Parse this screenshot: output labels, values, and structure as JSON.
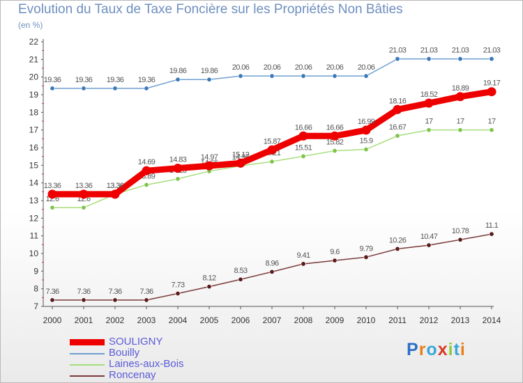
{
  "header": {
    "title": "Evolution du Taux de Taxe Foncière sur les Propriétés Non Bâties",
    "subtitle": "(en %)"
  },
  "logo": {
    "text": "Proxiti",
    "letter_colors": [
      "#2a6fc9",
      "#e8801a",
      "#3aa7d8",
      "#d83a2a",
      "#8bc93a",
      "#3aa7d8",
      "#e8801a"
    ]
  },
  "chart_data": {
    "type": "line",
    "title": "Evolution du Taux de Taxe Foncière sur les Propriétés Non Bâties",
    "subtitle": "(en %)",
    "xlabel": "",
    "ylabel": "",
    "x": [
      "2000",
      "2001",
      "2002",
      "2003",
      "2004",
      "2005",
      "2006",
      "2007",
      "2008",
      "2009",
      "2010",
      "2011",
      "2012",
      "2013",
      "2014"
    ],
    "yticks": [
      "7",
      "8",
      "9",
      "10",
      "11",
      "12",
      "13",
      "14",
      "15",
      "16",
      "17",
      "18",
      "19",
      "20",
      "21",
      "22"
    ],
    "ylim": [
      7,
      22
    ],
    "grid": false,
    "legend_position": "bottom-left",
    "series": [
      {
        "name": "SOULIGNY",
        "color": "#ee0000",
        "emphasis": true,
        "values": [
          13.36,
          13.36,
          13.36,
          14.69,
          14.83,
          14.97,
          15.12,
          15.87,
          16.66,
          16.66,
          16.99,
          18.16,
          18.52,
          18.89,
          19.17
        ],
        "labels": [
          "13.36",
          "13.36",
          "13.36",
          "14.69",
          "14.83",
          "14.97",
          "15.12",
          "15.87",
          "16.66",
          "16.66",
          "16.99",
          "18.16",
          "18.52",
          "18.89",
          "19.17"
        ]
      },
      {
        "name": "Bouilly",
        "color": "#6e9fd0",
        "marker": "#3a78b8",
        "values": [
          19.36,
          19.36,
          19.36,
          19.36,
          19.86,
          19.86,
          20.06,
          20.06,
          20.06,
          20.06,
          20.06,
          21.03,
          21.03,
          21.03,
          21.03
        ],
        "labels": [
          "19.36",
          "19.36",
          "19.36",
          "19.36",
          "19.86",
          "19.86",
          "20.06",
          "20.06",
          "20.06",
          "20.06",
          "20.06",
          "21.03",
          "21.03",
          "21.03",
          "21.03"
        ]
      },
      {
        "name": "Laines-aux-Bois",
        "color": "#a6de7a",
        "marker": "#7cc44a",
        "values": [
          12.6,
          12.6,
          13.36,
          13.89,
          14.23,
          14.66,
          14.97,
          15.21,
          15.51,
          15.82,
          15.9,
          16.67,
          17,
          17,
          17
        ],
        "labels": [
          "12.6",
          "12.6",
          "13.36",
          "13.89",
          "14.23",
          "14.66",
          "14.97",
          "15.21",
          "15.51",
          "15.82",
          "15.9",
          "16.67",
          "17",
          "17",
          "17"
        ]
      },
      {
        "name": "Roncenay",
        "color": "#7a3a3a",
        "marker": "#5a1a1a",
        "values": [
          7.36,
          7.36,
          7.36,
          7.36,
          7.73,
          8.12,
          8.53,
          8.96,
          9.41,
          9.6,
          9.79,
          10.26,
          10.47,
          10.78,
          11.1
        ],
        "labels": [
          "7.36",
          "7.36",
          "7.36",
          "7.36",
          "7.73",
          "8.12",
          "8.53",
          "8.96",
          "9.41",
          "9.6",
          "9.79",
          "10.26",
          "10.47",
          "10.78",
          "11.1"
        ]
      }
    ]
  }
}
